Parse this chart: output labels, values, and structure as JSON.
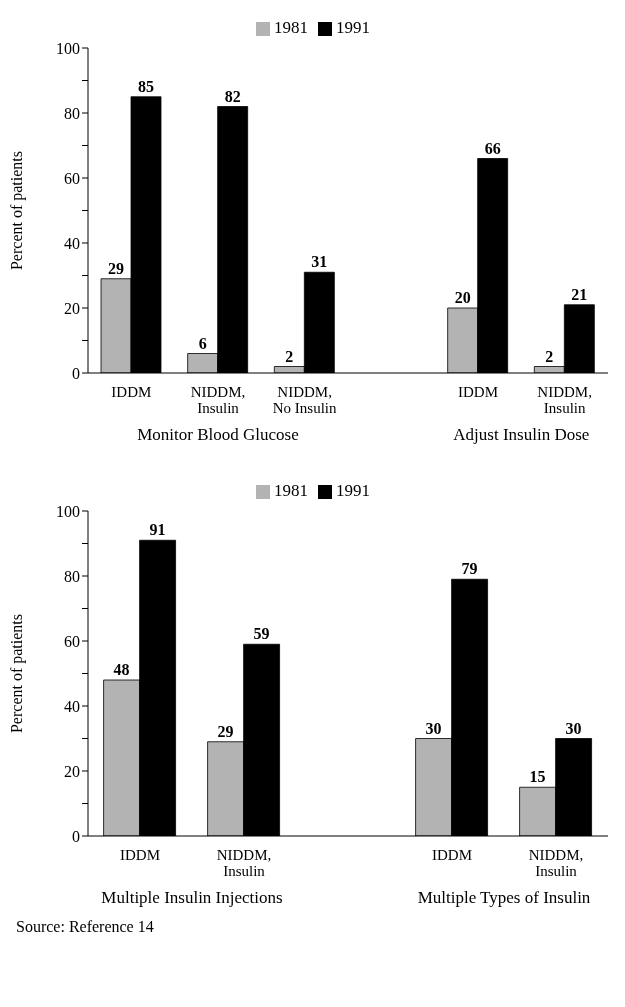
{
  "chart_data": [
    {
      "type": "bar",
      "ylabel": "Percent of patients",
      "categories": [
        "IDDM",
        "NIDDM, Insulin",
        "NIDDM, No Insulin",
        null,
        "IDDM",
        "NIDDM, Insulin"
      ],
      "series": [
        {
          "name": "1981",
          "color": "#b3b3b3",
          "values": [
            29,
            6,
            2,
            null,
            20,
            2
          ]
        },
        {
          "name": "1991",
          "color": "#000000",
          "values": [
            85,
            82,
            31,
            null,
            66,
            21
          ]
        }
      ],
      "ylim": [
        0,
        100
      ],
      "yticks": [
        0,
        {
          "value": 10,
          "label": null
        },
        20,
        {
          "value": 30,
          "label": null
        },
        40,
        {
          "value": 50,
          "label": null
        },
        60,
        {
          "value": 70,
          "label": null
        },
        80,
        {
          "value": 90,
          "label": null
        },
        100
      ],
      "data_labels": true,
      "legend": "top",
      "grid": false,
      "annotations": [
        "Monitor Blood Glucose",
        "Adjust Insulin Dose"
      ]
    },
    {
      "type": "bar",
      "ylabel": "Percent of patients",
      "categories": [
        "IDDM",
        "NIDDM, Insulin",
        null,
        "IDDM",
        "NIDDM, Insulin"
      ],
      "series": [
        {
          "name": "1981",
          "color": "#b3b3b3",
          "values": [
            48,
            29,
            null,
            30,
            15
          ]
        },
        {
          "name": "1991",
          "color": "#000000",
          "values": [
            91,
            59,
            null,
            79,
            30
          ]
        }
      ],
      "ylim": [
        0,
        100
      ],
      "yticks": [
        0,
        {
          "value": 10,
          "label": null
        },
        20,
        {
          "value": 30,
          "label": null
        },
        40,
        {
          "value": 50,
          "label": null
        },
        60,
        {
          "value": 70,
          "label": null
        },
        80,
        {
          "value": 90,
          "label": null
        },
        100
      ],
      "data_labels": true,
      "legend": "top",
      "grid": false,
      "annotations": [
        "Multiple Insulin Injections",
        "Multiple Types of Insulin",
        "Source: Reference 14"
      ]
    }
  ]
}
